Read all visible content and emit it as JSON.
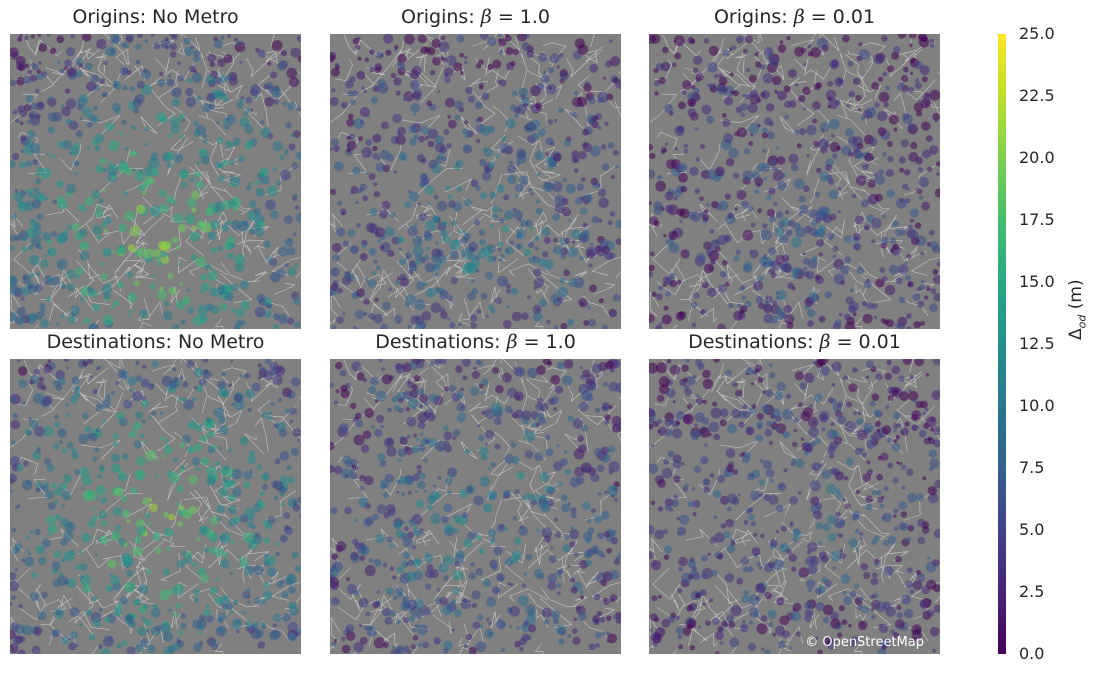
{
  "panels": [
    {
      "prefix": "Origins: ",
      "suffix": "No Metro",
      "beta": "",
      "level": 0.78
    },
    {
      "prefix": "Origins: ",
      "suffix": "= 1.0",
      "beta": "β",
      "level": 0.4
    },
    {
      "prefix": "Origins: ",
      "suffix": "= 0.01",
      "beta": "β",
      "level": 0.25
    },
    {
      "prefix": "Destinations: ",
      "suffix": "No Metro",
      "beta": "",
      "level": 0.75
    },
    {
      "prefix": "Destinations: ",
      "suffix": "= 1.0",
      "beta": "β",
      "level": 0.42
    },
    {
      "prefix": "Destinations: ",
      "suffix": "= 0.01",
      "beta": "β",
      "level": 0.28
    }
  ],
  "colorbar": {
    "label": "Δod (m)",
    "label_main": "Δ",
    "label_sub": "od",
    "label_unit": " (m)",
    "ticks": [
      "0.0",
      "2.5",
      "5.0",
      "7.5",
      "10.0",
      "12.5",
      "15.0",
      "17.5",
      "20.0",
      "22.5",
      "25.0"
    ],
    "min": 0,
    "max": 25,
    "colormap": "viridis"
  },
  "attribution": "© OpenStreetMap",
  "colors": {
    "map_background": "#808080",
    "roads": "#e6e6e6",
    "viridis_low": "#440154",
    "viridis_mid": "#21918c",
    "viridis_high": "#fde725"
  }
}
